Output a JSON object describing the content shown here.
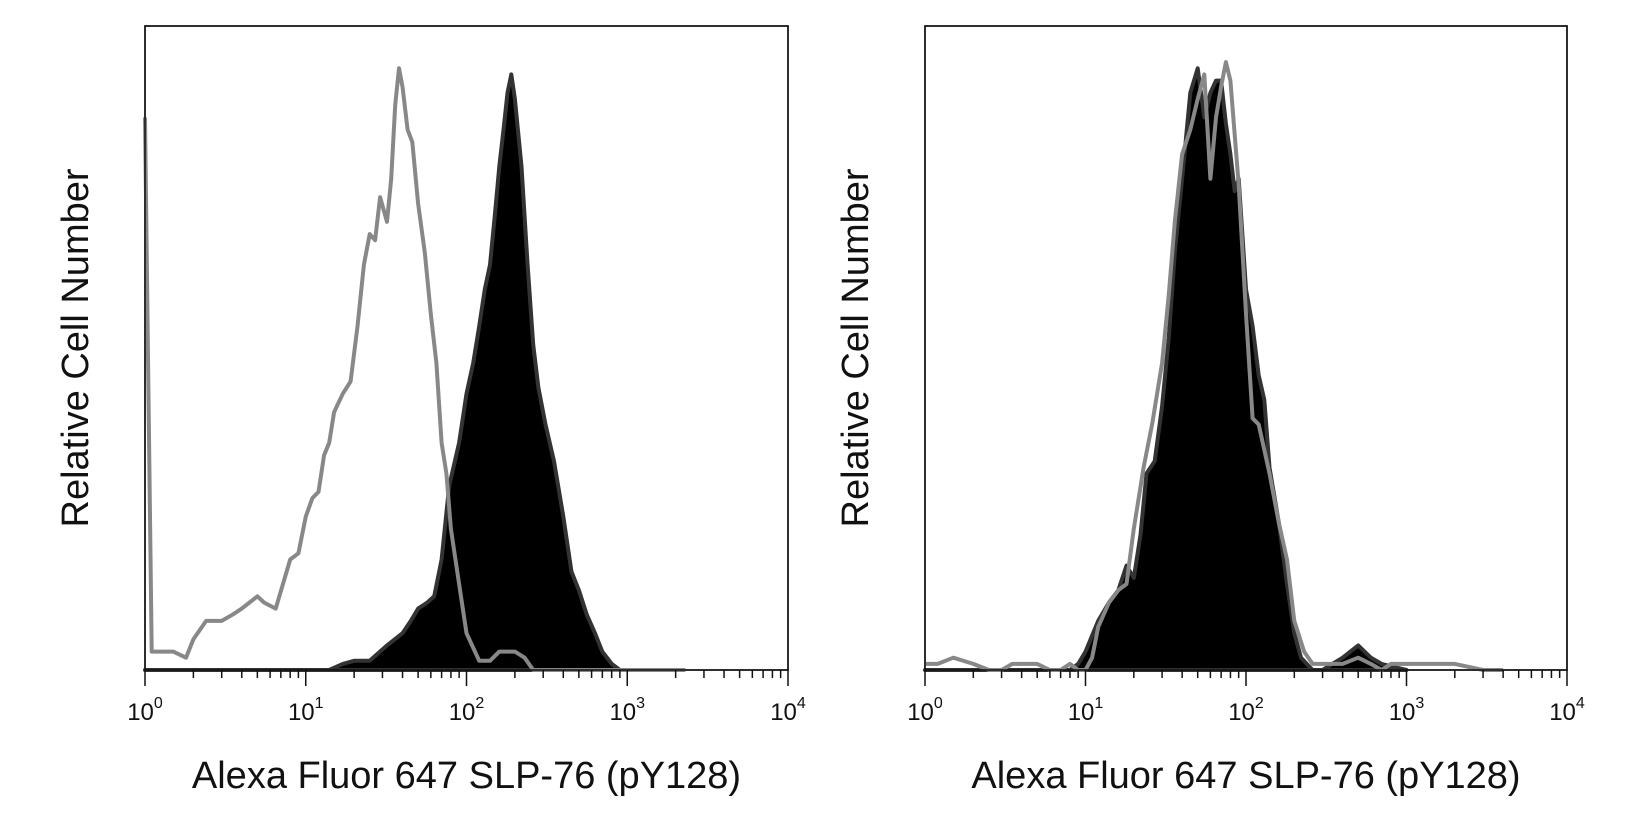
{
  "chart_data": [
    {
      "type": "area",
      "xscale": "log",
      "xlim": [
        1,
        10000
      ],
      "ylim": [
        0,
        100
      ],
      "ticks": [
        {
          "base": "10",
          "exp": "0"
        },
        {
          "base": "10",
          "exp": "1"
        },
        {
          "base": "10",
          "exp": "2"
        },
        {
          "base": "10",
          "exp": "3"
        },
        {
          "base": "10",
          "exp": "4"
        }
      ],
      "xlabel": "Alexa Fluor 647 SLP-76 (pY128)",
      "ylabel": "Relative Cell Number",
      "series": [
        {
          "style": "filled",
          "fill": "#000000",
          "stroke": "#333333",
          "x": [
            1,
            14,
            17,
            20,
            25,
            32,
            40,
            45,
            50,
            57,
            63,
            70,
            78,
            90,
            100,
            110,
            120,
            130,
            140,
            150,
            160,
            170,
            180,
            190,
            200,
            220,
            240,
            260,
            280,
            310,
            350,
            400,
            450,
            500,
            560,
            630,
            700,
            800,
            900
          ],
          "y": [
            0,
            0,
            1,
            1.5,
            1.5,
            4,
            6,
            8,
            10,
            11,
            12,
            18,
            30,
            37,
            45,
            50,
            56,
            62,
            66,
            74,
            82,
            88,
            94,
            97,
            93,
            82,
            66,
            53,
            46,
            40,
            34,
            25,
            16,
            13,
            9,
            6,
            3,
            1,
            0
          ]
        },
        {
          "style": "outline",
          "stroke": "#888888",
          "x": [
            1,
            1.1,
            1.5,
            1.8,
            2.0,
            2.4,
            3.0,
            3.5,
            4.0,
            5.0,
            5.5,
            6.5,
            8.0,
            9.0,
            10,
            11,
            12,
            13,
            14,
            15,
            17,
            19,
            21,
            23,
            25,
            27,
            29,
            32,
            34,
            36,
            38,
            40,
            43,
            46,
            50,
            55,
            60,
            65,
            70,
            75,
            80,
            90,
            100,
            120,
            140,
            160,
            180,
            200,
            230,
            260,
            300,
            350,
            400,
            600,
            1000,
            1500,
            2300
          ],
          "y": [
            90,
            3,
            3,
            2,
            5,
            8,
            8,
            9,
            10,
            12,
            11,
            10,
            18,
            19,
            25,
            28,
            29,
            35,
            37,
            42,
            45,
            47,
            56,
            66,
            71,
            70,
            77,
            73,
            80,
            92,
            98,
            95,
            88,
            86,
            76,
            68,
            58,
            50,
            37,
            32,
            23,
            14,
            6,
            1.5,
            1.5,
            3,
            3,
            3,
            2,
            0,
            0,
            0,
            0,
            0,
            0,
            0,
            0
          ]
        }
      ]
    },
    {
      "type": "area",
      "xscale": "log",
      "xlim": [
        1,
        10000
      ],
      "ylim": [
        0,
        100
      ],
      "ticks": [
        {
          "base": "10",
          "exp": "0"
        },
        {
          "base": "10",
          "exp": "1"
        },
        {
          "base": "10",
          "exp": "2"
        },
        {
          "base": "10",
          "exp": "3"
        },
        {
          "base": "10",
          "exp": "4"
        }
      ],
      "xlabel": "Alexa Fluor 647 SLP-76 (pY128)",
      "ylabel": "Relative Cell Number",
      "series": [
        {
          "style": "filled",
          "fill": "#000000",
          "stroke": "#333333",
          "x": [
            1,
            8,
            9,
            10,
            12,
            14,
            16,
            18,
            20,
            22,
            24,
            27,
            30,
            33,
            36,
            40,
            45,
            50,
            55,
            60,
            65,
            70,
            75,
            80,
            85,
            90,
            100,
            110,
            120,
            130,
            140,
            160,
            180,
            200,
            220,
            260,
            300,
            400,
            500,
            600,
            700,
            1000
          ],
          "y": [
            0,
            0,
            1,
            3,
            8,
            11,
            13,
            17,
            15,
            22,
            32,
            34,
            43,
            54,
            68,
            80,
            94,
            98,
            90,
            94,
            96,
            96,
            89,
            84,
            78,
            80,
            62,
            56,
            48,
            44,
            33,
            24,
            14,
            6,
            2,
            0,
            0,
            2,
            4,
            2,
            1,
            0
          ]
        },
        {
          "style": "outline",
          "stroke": "#888888",
          "x": [
            1,
            1.2,
            1.5,
            2.0,
            2.5,
            3.0,
            3.5,
            4.0,
            5.0,
            6.0,
            7.0,
            8.0,
            9.0,
            10,
            11,
            12,
            14,
            16,
            18,
            20,
            23,
            26,
            30,
            33,
            36,
            40,
            45,
            50,
            55,
            60,
            65,
            70,
            75,
            80,
            90,
            100,
            110,
            120,
            140,
            160,
            180,
            200,
            230,
            260,
            300,
            400,
            500,
            600,
            700,
            800,
            1000,
            1500,
            2000,
            3000,
            4000
          ],
          "y": [
            1,
            1,
            2,
            1,
            0,
            0,
            1,
            1,
            1,
            0,
            0,
            1,
            0,
            0,
            2,
            7,
            11,
            13,
            14,
            23,
            33,
            40,
            50,
            61,
            73,
            84,
            88,
            93,
            97,
            80,
            90,
            95,
            99,
            96,
            79,
            58,
            41,
            40,
            32,
            24,
            18,
            8,
            3,
            1,
            1,
            1,
            2,
            1,
            0,
            1,
            1,
            1,
            1,
            0,
            0
          ]
        }
      ]
    }
  ]
}
